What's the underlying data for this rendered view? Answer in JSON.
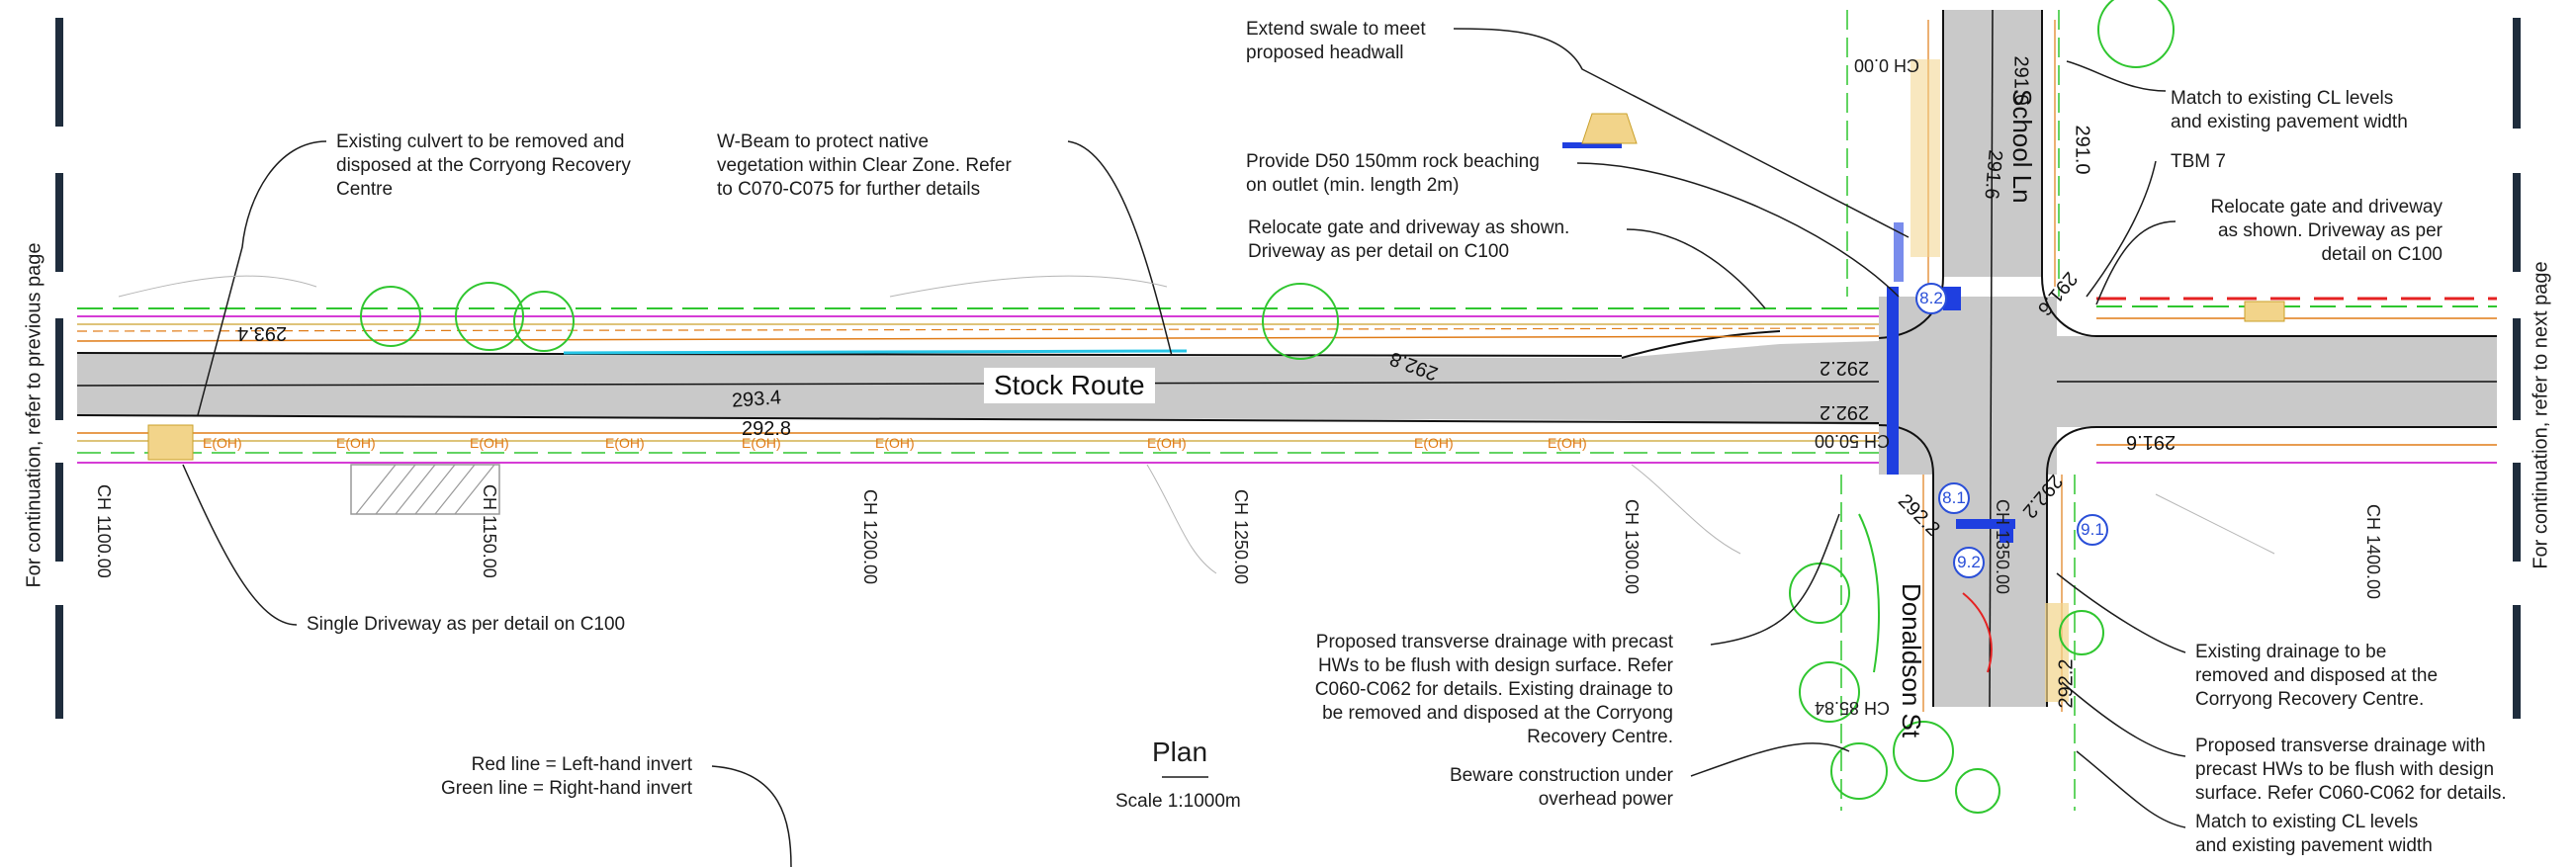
{
  "side_labels": {
    "left": "For continuation, refer to previous page",
    "right": "For continuation, refer to next page"
  },
  "title": "Plan",
  "scale": "Scale 1:1000m",
  "road_labels": {
    "main": "Stock Route",
    "north": "School Ln",
    "south": "Donaldson St"
  },
  "chainages": [
    "CH 1100.00",
    "CH 1150.00",
    "CH 1200.00",
    "CH 1250.00",
    "CH 1300.00",
    "CH 1350.00",
    "CH 1400.00",
    "CH 0.00",
    "CH 50.00",
    "CH 85.84"
  ],
  "levels": [
    "293.4",
    "292.8",
    "293.4",
    "292.8",
    "292.2",
    "292.2",
    "291.6",
    "291.6",
    "291.0",
    "291.6",
    "291.0",
    "292.2",
    "292.2",
    "292.2"
  ],
  "service_label": "E(OH)",
  "bubbles": [
    "8.2",
    "8.1",
    "9.1",
    "9.2"
  ],
  "legend": {
    "red": "Red line = Left-hand invert",
    "green": "Green line = Right-hand invert"
  },
  "notes": {
    "culvert": "Existing culvert to be removed and\ndisposed at the Corryong Recovery\nCentre",
    "wbeam": "W-Beam to protect native\nvegetation within Clear Zone. Refer\nto C070-C075 for further details",
    "swale": "Extend swale to meet\nproposed headwall",
    "beaching": "Provide D50 150mm rock beaching\non outlet (min. length 2m)",
    "gate_left": "Relocate gate and driveway as shown.\nDriveway as per detail on C100",
    "match_top": "Match to existing CL levels\nand existing pavement width",
    "tbm": "TBM 7",
    "gate_right": "Relocate gate and driveway\nas shown. Driveway as per\ndetail on C100",
    "single_driveway": "Single Driveway as per detail on C100",
    "transverse_left": "Proposed transverse drainage with precast\nHWs to be flush with design surface. Refer\nC060-C062 for details. Existing drainage to\nbe removed and disposed at the Corryong\nRecovery Centre.",
    "overhead": "Beware construction under\noverhead power",
    "existing_drainage": "Existing drainage to be\nremoved and disposed at the\nCorryong Recovery Centre.",
    "transverse_right": "Proposed transverse drainage with\nprecast HWs to be flush with design\nsurface. Refer C060-C062 for details.",
    "match_bottom": "Match to existing CL levels\nand existing pavement width"
  },
  "colors": {
    "asphalt": "#c9c9c9",
    "green": "#2fc62f",
    "orange": "#e07b16",
    "magenta": "#d63cd6",
    "red": "#e52222",
    "blue": "#1f3fe0",
    "border": "#1f2d3d",
    "cyan": "#27c5e6",
    "tan": "#f2d48a"
  }
}
